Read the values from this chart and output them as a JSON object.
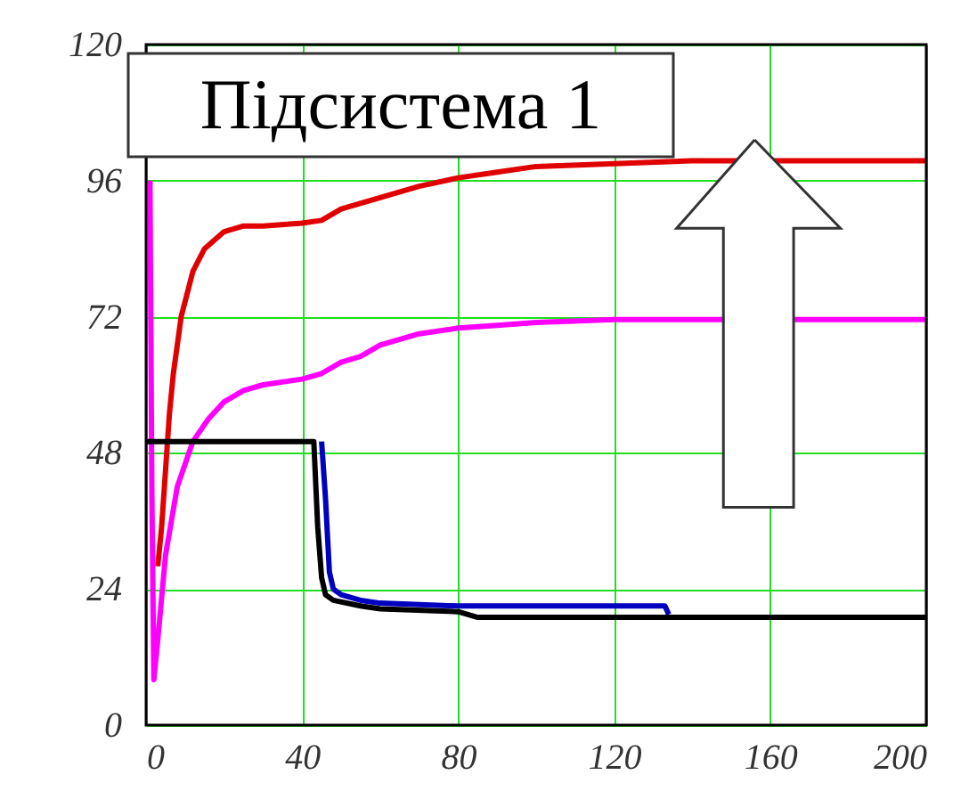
{
  "chart_data": {
    "type": "line",
    "xlim": [
      0,
      200
    ],
    "xticks": [
      0,
      40,
      80,
      120,
      160,
      200
    ],
    "ylim": [
      0,
      120
    ],
    "yticks": [
      0,
      24,
      48,
      72,
      96,
      120
    ],
    "grid": true,
    "line_style": "solid",
    "marker": "none",
    "annotations": [
      "Підсистема 1"
    ],
    "series": [
      {
        "color": "#ff00ff",
        "x": [
          1,
          1.5,
          2,
          3,
          5,
          8,
          12,
          16,
          20,
          25,
          30,
          40,
          45,
          50,
          55,
          60,
          70,
          80,
          90,
          100,
          120,
          140,
          200
        ],
        "values": [
          96,
          40,
          8,
          15,
          30,
          42,
          50,
          54,
          57,
          59,
          60,
          61,
          62,
          64,
          65,
          67,
          69,
          70,
          70.5,
          71,
          71.5,
          71.5,
          71.5
        ]
      },
      {
        "color": "#e00000",
        "x": [
          3,
          4,
          5,
          6,
          7,
          9,
          12,
          15,
          20,
          25,
          30,
          40,
          45,
          50,
          60,
          70,
          80,
          90,
          100,
          140,
          200
        ],
        "values": [
          28,
          35,
          45,
          55,
          62,
          72,
          80,
          84,
          87,
          88,
          88,
          88.5,
          89,
          91,
          93,
          95,
          96.5,
          97.5,
          98.5,
          99.5,
          99.5
        ]
      },
      {
        "color": "#0000c0",
        "x": [
          45,
          46,
          47,
          48,
          50,
          55,
          60,
          80,
          100,
          120,
          133,
          134
        ],
        "values": [
          50,
          40,
          27,
          24,
          23,
          22,
          21.5,
          21,
          21,
          21,
          21,
          19.5
        ]
      },
      {
        "color": "#000000",
        "x": [
          0,
          43,
          44,
          45,
          46,
          48,
          55,
          60,
          80,
          85,
          200
        ],
        "values": [
          50,
          50,
          35,
          26,
          23,
          22,
          21,
          20.5,
          20,
          19,
          19
        ]
      }
    ]
  }
}
